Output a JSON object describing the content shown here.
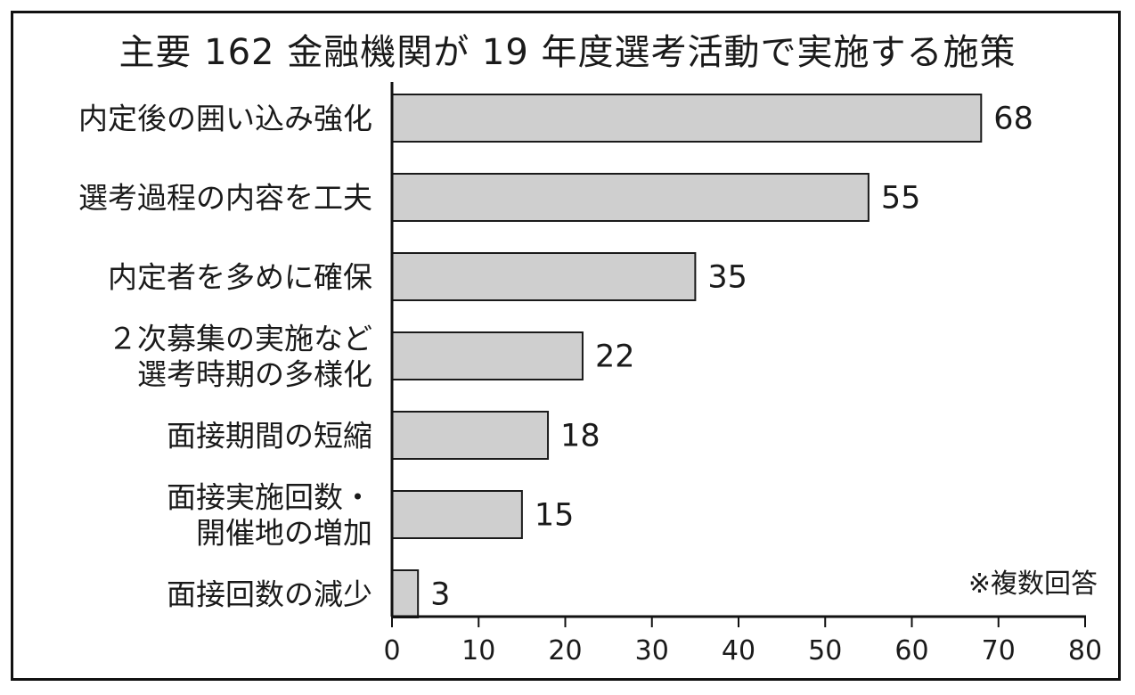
{
  "chart_data": {
    "type": "bar",
    "orientation": "horizontal",
    "title": "主要 162 金融機関が 19 年度選考活動で実施する施策",
    "categories": [
      [
        "内定後の囲い込み強化"
      ],
      [
        "選考過程の内容を工夫"
      ],
      [
        "内定者を多めに確保"
      ],
      [
        "２次募集の実施など",
        "選考時期の多様化"
      ],
      [
        "面接期間の短縮"
      ],
      [
        "面接実施回数・",
        "開催地の増加"
      ],
      [
        "面接回数の減少"
      ]
    ],
    "values": [
      68,
      55,
      35,
      22,
      18,
      15,
      3
    ],
    "xlim": [
      0,
      80
    ],
    "xticks": [
      0,
      10,
      20,
      30,
      40,
      50,
      60,
      70,
      80
    ],
    "grid": false,
    "bar_color": "#cfcfcf",
    "bar_edge_color": "#1a1a1a",
    "note": "※複数回答"
  }
}
